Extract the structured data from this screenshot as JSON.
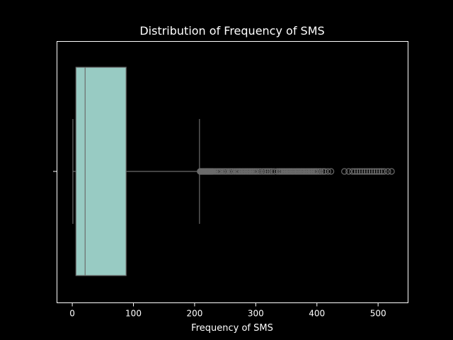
{
  "chart_data": {
    "type": "box",
    "title": "Distribution of Frequency of SMS",
    "xlabel": "Frequency of SMS",
    "ylabel": "",
    "xlim": [
      -25,
      549
    ],
    "xticks": [
      0,
      100,
      200,
      300,
      400,
      500
    ],
    "grid": false,
    "box": {
      "whisker_low": 1,
      "q1": 6,
      "median": 21,
      "q3": 88,
      "whisker_high": 208,
      "color": "#98cbc3",
      "line_color": "#6b6b6b"
    },
    "outliers": [
      209,
      210,
      211,
      212,
      213,
      214,
      215,
      216,
      217,
      218,
      219,
      220,
      221,
      222,
      223,
      224,
      225,
      226,
      227,
      228,
      229,
      230,
      232,
      234,
      236,
      238,
      240,
      242,
      245,
      248,
      250,
      252,
      255,
      258,
      260,
      262,
      265,
      268,
      270,
      272,
      274,
      276,
      278,
      280,
      282,
      284,
      286,
      288,
      290,
      292,
      294,
      296,
      298,
      300,
      302,
      305,
      308,
      312,
      315,
      318,
      320,
      323,
      326,
      330,
      335,
      338,
      340,
      342,
      344,
      346,
      348,
      350,
      352,
      354,
      356,
      358,
      360,
      362,
      364,
      366,
      368,
      370,
      372,
      374,
      376,
      378,
      380,
      382,
      384,
      386,
      388,
      390,
      392,
      394,
      396,
      398,
      400,
      403,
      406,
      410,
      413,
      418,
      423,
      445,
      452,
      458,
      462,
      466,
      470,
      474,
      478,
      482,
      486,
      490,
      494,
      498,
      502,
      506,
      510,
      516,
      522
    ]
  }
}
